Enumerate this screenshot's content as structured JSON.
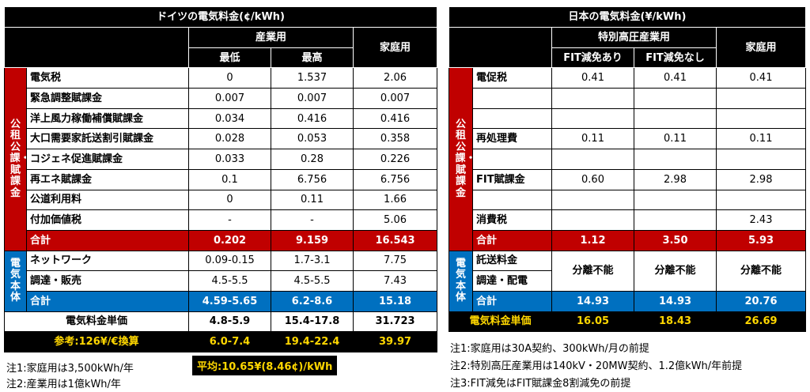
{
  "germany": {
    "title": "ドイツの電気料金(¢/kWh)",
    "header": {
      "industrial": "産業用",
      "min": "最低",
      "max": "最高",
      "household": "家庭用"
    },
    "side_tax": "公租公課・賦課金",
    "side_body": "電気本体",
    "tax_rows": [
      {
        "label": "電気税",
        "min": "0",
        "max": "1.537",
        "household": "2.06"
      },
      {
        "label": "緊急調整賦課金",
        "min": "0.007",
        "max": "0.007",
        "household": "0.007"
      },
      {
        "label": "洋上風力稼働補償賦課金",
        "min": "0.034",
        "max": "0.416",
        "household": "0.416"
      },
      {
        "label": "大口需要家託送割引賦課金",
        "min": "0.028",
        "max": "0.053",
        "household": "0.358"
      },
      {
        "label": "コジェネ促進賦課金",
        "min": "0.033",
        "max": "0.28",
        "household": "0.226"
      },
      {
        "label": "再エネ賦課金",
        "min": "0.1",
        "max": "6.756",
        "household": "6.756"
      },
      {
        "label": "公道利用料",
        "min": "0",
        "max": "0.11",
        "household": "1.66"
      },
      {
        "label": "付加価値税",
        "min": "-",
        "max": "-",
        "household": "5.06"
      }
    ],
    "tax_total": {
      "label": "合計",
      "min": "0.202",
      "max": "9.159",
      "household": "16.543"
    },
    "body_rows": [
      {
        "label": "ネットワーク",
        "min": "0.09-0.15",
        "max": "1.7-3.1",
        "household": "7.75"
      },
      {
        "label": "調達・販売",
        "min": "4.5-5.5",
        "max": "4.5-5.5",
        "household": "7.43"
      }
    ],
    "body_total": {
      "label": "合計",
      "min": "4.59-5.65",
      "max": "6.2-8.6",
      "household": "15.18"
    },
    "unit_price": {
      "label": "電気料金単価",
      "min": "4.8-5.9",
      "max": "15.4-17.8",
      "household": "31.723"
    },
    "reference": {
      "label": "参考:126¥/€換算",
      "min": "6.0-7.4",
      "max": "19.4-22.4",
      "household": "39.97"
    },
    "average": "平均:10.65¥(8.46¢)/kWh",
    "notes": [
      "注1:家庭用は3,500kWh/年",
      "注2:産業用は1億kWh/年"
    ]
  },
  "japan": {
    "title": "日本の電気料金(¥/kWh)",
    "header": {
      "industrial": "特別高圧産業用",
      "with_fit": "FIT減免あり",
      "without_fit": "FIT減免なし",
      "household": "家庭用"
    },
    "side_tax": "公租公課・賦課金",
    "side_body": "電気本体",
    "tax_rows": [
      {
        "label": "電促税",
        "a": "0.41",
        "b": "0.41",
        "household": "0.41"
      },
      {
        "label": "",
        "a": "",
        "b": "",
        "household": ""
      },
      {
        "label": "",
        "a": "",
        "b": "",
        "household": ""
      },
      {
        "label": "再処理費",
        "a": "0.11",
        "b": "0.11",
        "household": "0.11"
      },
      {
        "label": "",
        "a": "",
        "b": "",
        "household": ""
      },
      {
        "label": "FIT賦課金",
        "a": "0.60",
        "b": "2.98",
        "household": "2.98"
      },
      {
        "label": "",
        "a": "",
        "b": "",
        "household": ""
      },
      {
        "label": "消費税",
        "a": "",
        "b": "",
        "household": "2.43"
      }
    ],
    "tax_total": {
      "label": "合計",
      "a": "1.12",
      "b": "3.50",
      "household": "5.93"
    },
    "body_rows": [
      {
        "label": "託送料金"
      },
      {
        "label": "調達・配電"
      }
    ],
    "body_separated": {
      "a": "分離不能",
      "b": "分離不能",
      "household": "分離不能"
    },
    "body_total": {
      "label": "合計",
      "a": "14.93",
      "b": "14.93",
      "household": "20.76"
    },
    "unit_price": {
      "label": "電気料金単価",
      "a": "16.05",
      "b": "18.43",
      "household": "26.69"
    },
    "notes": [
      "注1:家庭用は30A契約、300kWh/月の前提",
      "注2:特別高圧産業用は140kV・20MW契約、1.2億kWh/年前提",
      "注3:FIT減免はFIT賦課金8割減免の前提"
    ]
  }
}
